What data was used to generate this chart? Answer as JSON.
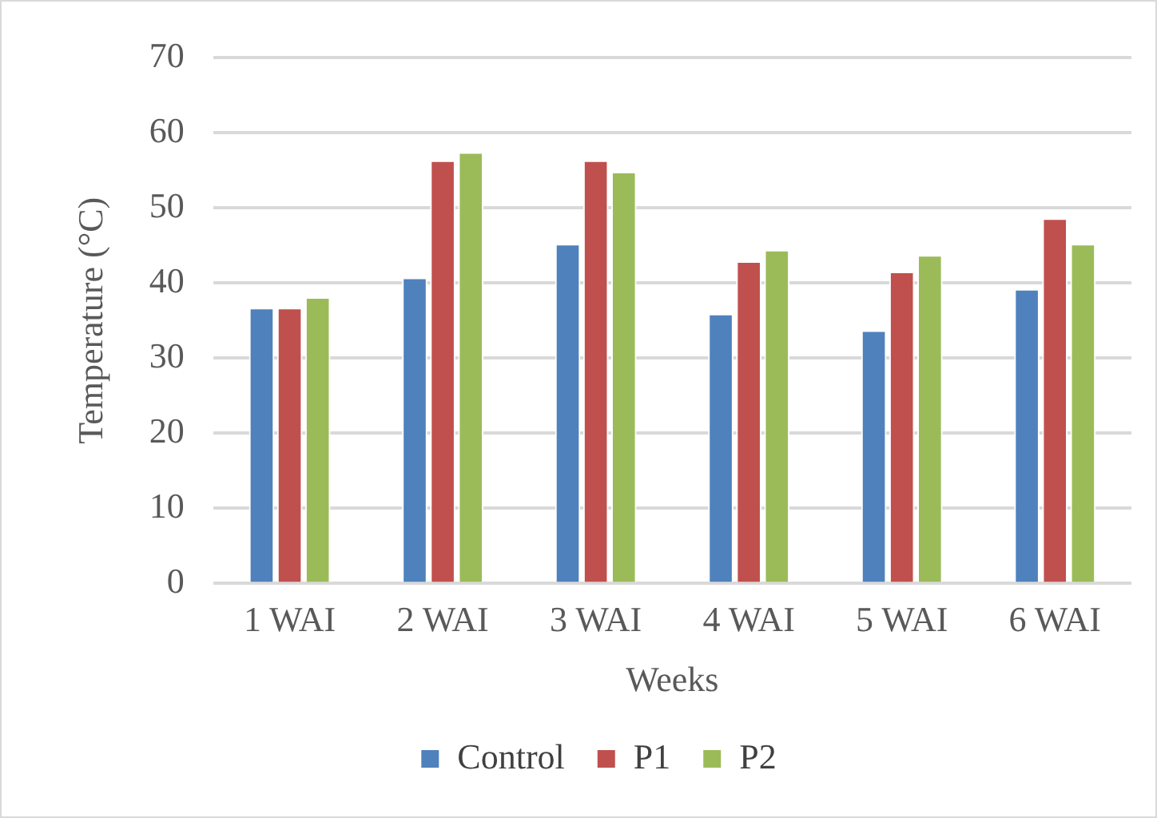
{
  "chart_data": {
    "type": "bar",
    "xlabel": "Weeks",
    "ylabel": "Temperature (°C)",
    "categories": [
      "1 WAI",
      "2 WAI",
      "3 WAI",
      "4 WAI",
      "5 WAI",
      "6 WAI"
    ],
    "series": [
      {
        "name": "Control",
        "color": "#4f81bd",
        "values": [
          36.7,
          40.7,
          45.2,
          35.9,
          33.7,
          39.2
        ]
      },
      {
        "name": "P1",
        "color": "#c0504d",
        "values": [
          36.7,
          56.3,
          56.3,
          42.9,
          41.5,
          48.6
        ]
      },
      {
        "name": "P2",
        "color": "#9bbb59",
        "values": [
          38.1,
          57.4,
          54.8,
          44.4,
          43.7,
          45.2
        ]
      }
    ],
    "ylim": [
      0,
      70
    ],
    "yticks": [
      0,
      10,
      20,
      30,
      40,
      50,
      60,
      70
    ],
    "grid": "y",
    "legend": "bottom"
  }
}
